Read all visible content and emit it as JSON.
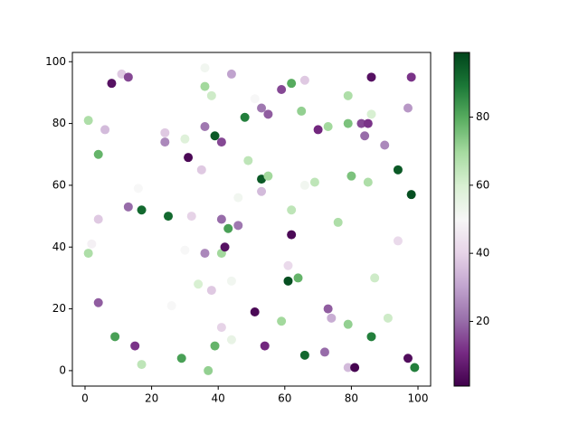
{
  "chart_data": {
    "type": "scatter",
    "colormap": "PRGn",
    "x": [
      11,
      13,
      8,
      36,
      44,
      86,
      98,
      36,
      38,
      62,
      59,
      66,
      79,
      51,
      1,
      6,
      24,
      24,
      30,
      36,
      39,
      41,
      48,
      53,
      55,
      65,
      70,
      73,
      79,
      83,
      85,
      84,
      86,
      97,
      90,
      4,
      31,
      35,
      49,
      53,
      55,
      66,
      69,
      80,
      85,
      94,
      98,
      16,
      13,
      17,
      4,
      25,
      32,
      41,
      43,
      46,
      46,
      53,
      62,
      62,
      76,
      94,
      2,
      1,
      30,
      36,
      41,
      42,
      34,
      38,
      44,
      61,
      64,
      61,
      87,
      4,
      26,
      51,
      73,
      74,
      59,
      79,
      91,
      41,
      9,
      44,
      15,
      17,
      39,
      54,
      86,
      29,
      37,
      66,
      72,
      79,
      81,
      97,
      99
    ],
    "y": [
      96,
      95,
      93,
      98,
      96,
      95,
      95,
      92,
      89,
      93,
      91,
      94,
      89,
      88,
      81,
      78,
      77,
      74,
      75,
      79,
      76,
      74,
      82,
      85,
      83,
      84,
      78,
      79,
      80,
      80,
      80,
      76,
      83,
      85,
      73,
      70,
      69,
      65,
      68,
      62,
      63,
      60,
      61,
      63,
      61,
      65,
      57,
      59,
      53,
      52,
      49,
      50,
      50,
      49,
      46,
      47,
      56,
      58,
      52,
      44,
      48,
      42,
      41,
      38,
      39,
      38,
      38,
      40,
      28,
      26,
      29,
      34,
      30,
      29,
      30,
      22,
      21,
      19,
      20,
      17,
      16,
      15,
      17,
      14,
      11,
      10,
      8,
      2,
      8,
      8,
      11,
      4,
      0,
      5,
      6,
      1,
      1,
      4,
      1
    ],
    "c": [
      38,
      15,
      5,
      52,
      30,
      5,
      12,
      70,
      62,
      80,
      15,
      38,
      68,
      50,
      68,
      35,
      38,
      25,
      58,
      22,
      95,
      15,
      88,
      22,
      18,
      72,
      10,
      70,
      75,
      15,
      12,
      20,
      60,
      28,
      25,
      78,
      3,
      38,
      65,
      95,
      70,
      52,
      65,
      75,
      68,
      95,
      97,
      50,
      20,
      92,
      38,
      92,
      40,
      20,
      82,
      22,
      52,
      35,
      65,
      3,
      68,
      42,
      48,
      68,
      50,
      25,
      70,
      5,
      60,
      38,
      52,
      42,
      78,
      97,
      62,
      18,
      50,
      3,
      18,
      32,
      70,
      72,
      62,
      40,
      82,
      55,
      12,
      65,
      78,
      10,
      88,
      82,
      72,
      92,
      20,
      35,
      2,
      4,
      88
    ],
    "xlim": [
      -3.8,
      103.8
    ],
    "ylim": [
      -5,
      103
    ],
    "xticks": [
      0,
      20,
      40,
      60,
      80,
      100
    ],
    "yticks": [
      0,
      20,
      40,
      60,
      80,
      100
    ],
    "clim": [
      1,
      99
    ],
    "cticks": [
      20,
      40,
      60,
      80
    ]
  }
}
